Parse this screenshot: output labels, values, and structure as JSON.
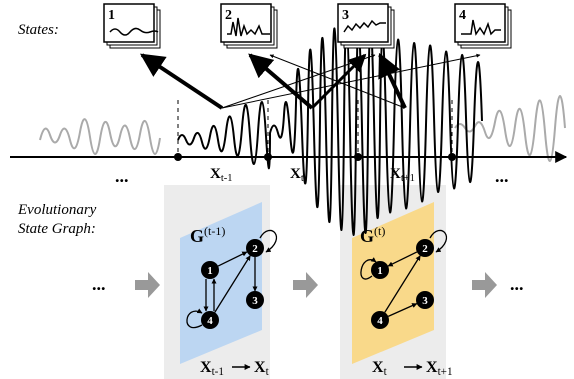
{
  "states_label": "States:",
  "states": [
    "1",
    "2",
    "3",
    "4"
  ],
  "timeline_ellipsis": [
    "...",
    "..."
  ],
  "segments": [
    {
      "base": "X",
      "sub": "t-1"
    },
    {
      "base": "X",
      "sub": "t"
    },
    {
      "base": "X",
      "sub": "t+1"
    }
  ],
  "graph_label": [
    "Evolutionary",
    "State Graph:"
  ],
  "flow_ellipsis": [
    "...",
    "..."
  ],
  "graphs": [
    {
      "base": "G",
      "sup": "(t-1)",
      "nodes": [
        "1",
        "2",
        "3",
        "4"
      ],
      "from": {
        "base": "X",
        "sub": "t-1"
      },
      "to": {
        "base": "X",
        "sub": "t"
      }
    },
    {
      "base": "G",
      "sup": "(t)",
      "nodes": [
        "1",
        "2",
        "3",
        "4"
      ],
      "from": {
        "base": "X",
        "sub": "t"
      },
      "to": {
        "base": "X",
        "sub": "t+1"
      }
    }
  ]
}
